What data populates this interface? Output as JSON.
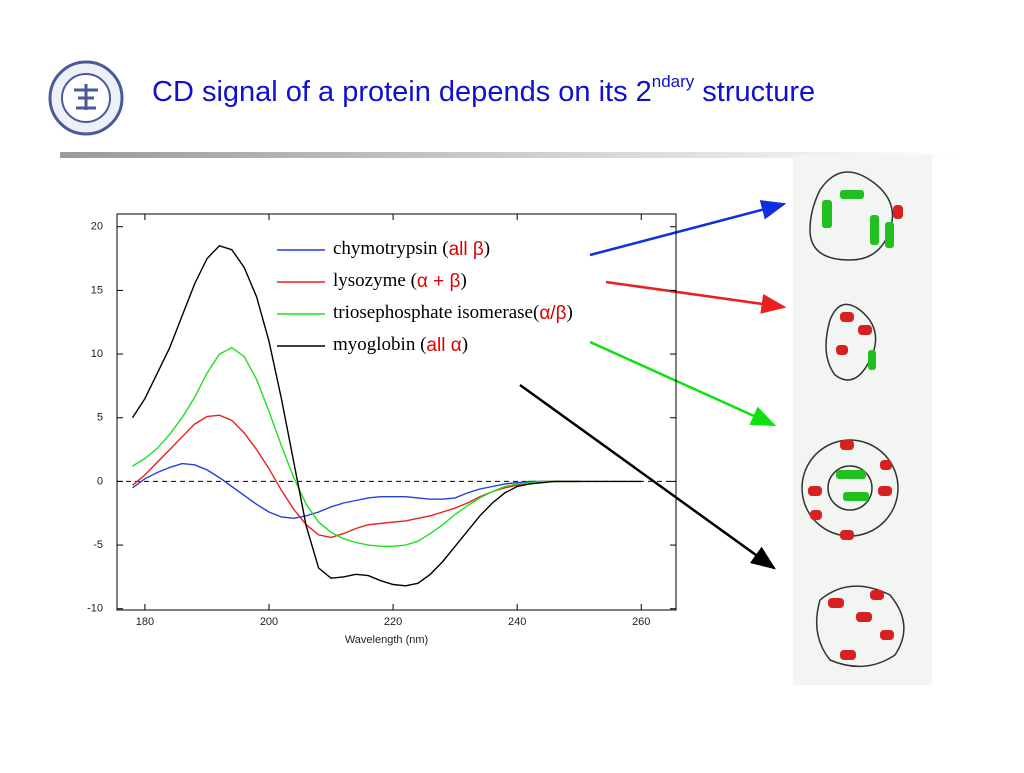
{
  "header": {
    "title": "CD signal of a protein depends on its 2",
    "title_superscript": "ndary",
    "title_end": "structure"
  },
  "chart_data": {
    "type": "line",
    "x": [
      178,
      180,
      182,
      184,
      186,
      188,
      190,
      192,
      194,
      196,
      198,
      200,
      202,
      204,
      206,
      208,
      210,
      212,
      214,
      216,
      218,
      220,
      222,
      224,
      226,
      228,
      230,
      232,
      234,
      236,
      238,
      240,
      242,
      244,
      246,
      248,
      250,
      255,
      260
    ],
    "series": [
      {
        "name": "chymotrypsin",
        "structure": "all β",
        "color": "#2040e0",
        "values": [
          -0.5,
          0.2,
          0.7,
          1.1,
          1.4,
          1.3,
          0.9,
          0.3,
          -0.4,
          -1.1,
          -1.8,
          -2.4,
          -2.8,
          -2.9,
          -2.7,
          -2.4,
          -2,
          -1.7,
          -1.5,
          -1.3,
          -1.2,
          -1.2,
          -1.2,
          -1.3,
          -1.4,
          -1.4,
          -1.3,
          -0.9,
          -0.6,
          -0.4,
          -0.2,
          -0.1,
          0,
          0,
          0,
          0,
          0,
          null,
          null
        ]
      },
      {
        "name": "lysozyme",
        "structure": "α + β",
        "color": "#e82020",
        "values": [
          -0.3,
          0.5,
          1.5,
          2.5,
          3.5,
          4.5,
          5.1,
          5.2,
          4.8,
          3.8,
          2.5,
          1,
          -0.7,
          -2.2,
          -3.4,
          -4.2,
          -4.4,
          -4.1,
          -3.7,
          -3.4,
          -3.3,
          -3.2,
          -3.1,
          -2.9,
          -2.7,
          -2.4,
          -2.1,
          -1.7,
          -1.2,
          -0.8,
          -0.5,
          -0.3,
          -0.1,
          0,
          0,
          0,
          0,
          null,
          null
        ]
      },
      {
        "name": "triosephosphate isomerase",
        "structure": "α/β",
        "color": "#20e020",
        "values": [
          1.2,
          1.8,
          2.6,
          3.7,
          5,
          6.6,
          8.5,
          10,
          10.5,
          9.8,
          8,
          5.5,
          2.8,
          0.3,
          -1.8,
          -3.2,
          -4,
          -4.5,
          -4.8,
          -5,
          -5.1,
          -5.1,
          -5,
          -4.7,
          -4.1,
          -3.4,
          -2.6,
          -1.9,
          -1.3,
          -0.8,
          -0.4,
          -0.2,
          -0.1,
          0,
          0,
          0,
          0,
          null,
          null
        ]
      },
      {
        "name": "myoglobin",
        "structure": "all α",
        "color": "#000000",
        "values": [
          5,
          6.5,
          8.5,
          10.5,
          13,
          15.5,
          17.5,
          18.5,
          18.2,
          16.8,
          14.5,
          11,
          6.5,
          1.5,
          -3.5,
          -6.8,
          -7.6,
          -7.5,
          -7.3,
          -7.4,
          -7.8,
          -8.1,
          -8.2,
          -8,
          -7.3,
          -6.3,
          -5.1,
          -3.9,
          -2.7,
          -1.7,
          -0.9,
          -0.4,
          -0.2,
          -0.1,
          0,
          0,
          0,
          0,
          0
        ]
      }
    ],
    "x_label": "Wavelength (nm)",
    "xlim": [
      175.5,
      265.6
    ],
    "xticks": [
      180,
      200,
      220,
      240,
      260
    ],
    "ylim": [
      -10.1,
      21
    ],
    "yticks": [
      -10,
      -5,
      0,
      5,
      10,
      15,
      20
    ],
    "zero_line": true
  }
}
